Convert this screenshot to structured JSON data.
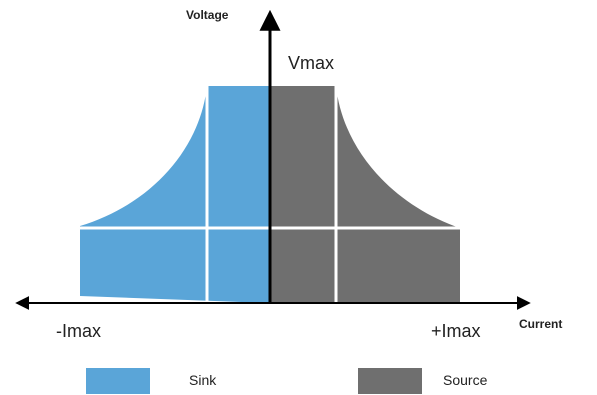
{
  "axes": {
    "y_title": "Voltage",
    "x_title": "Current"
  },
  "labels": {
    "vmax": "Vmax",
    "neg_imax": "-Imax",
    "pos_imax": "+Imax"
  },
  "legend": [
    {
      "label": "Sink",
      "color": "#5aa5d8"
    },
    {
      "label": "Source",
      "color": "#6f6f6f"
    }
  ],
  "colors": {
    "sink": "#5aa5d8",
    "source": "#6f6f6f",
    "axis": "#000000",
    "grid": "#ffffff"
  }
}
